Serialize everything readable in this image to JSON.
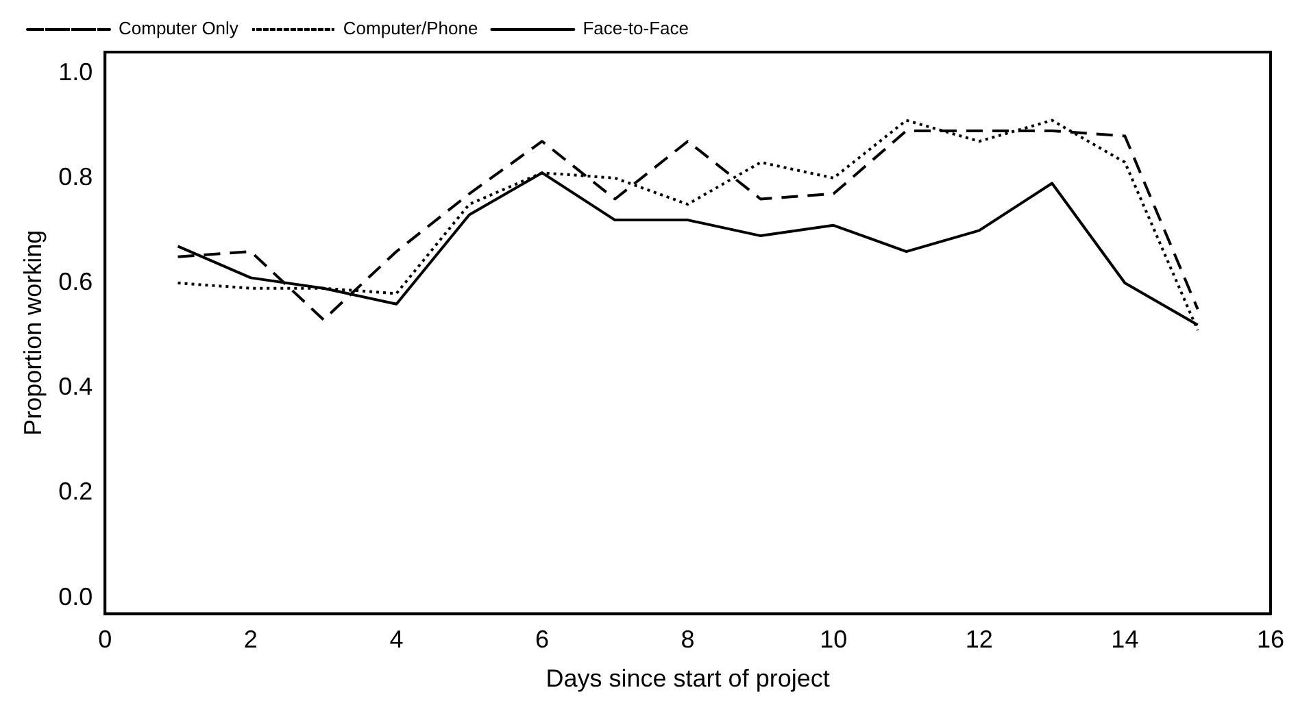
{
  "chart_data": {
    "type": "line",
    "xlabel": "Days since start of project",
    "ylabel": "Proportion working",
    "x": [
      1,
      2,
      3,
      4,
      5,
      6,
      7,
      8,
      9,
      10,
      11,
      12,
      13,
      14,
      15
    ],
    "series": [
      {
        "name": "Computer Only",
        "color": "#000000",
        "line_style": "dashed",
        "values": [
          0.65,
          0.66,
          0.53,
          0.66,
          0.77,
          0.87,
          0.76,
          0.87,
          0.76,
          0.77,
          0.89,
          0.89,
          0.89,
          0.88,
          0.55
        ]
      },
      {
        "name": "Computer/Phone",
        "color": "#000000",
        "line_style": "dotted",
        "values": [
          0.6,
          0.59,
          0.59,
          0.58,
          0.75,
          0.81,
          0.8,
          0.75,
          0.83,
          0.8,
          0.91,
          0.87,
          0.91,
          0.83,
          0.51
        ]
      },
      {
        "name": "Face-to-Face",
        "color": "#000000",
        "line_style": "solid",
        "values": [
          0.67,
          0.61,
          0.59,
          0.56,
          0.73,
          0.81,
          0.72,
          0.72,
          0.69,
          0.71,
          0.66,
          0.7,
          0.79,
          0.6,
          0.52
        ]
      }
    ],
    "xlim": [
      0,
      16
    ],
    "xticks": [
      0,
      2,
      4,
      6,
      8,
      10,
      12,
      14,
      16
    ],
    "ylim": [
      -0.03,
      1.04
    ],
    "yticks": [
      {
        "value": 0,
        "label": "0.0"
      },
      {
        "value": 0.2,
        "label": "0.2"
      },
      {
        "value": 0.4,
        "label": "0.4"
      },
      {
        "value": 0.6,
        "label": "0.6"
      },
      {
        "value": 0.8,
        "label": "0.8"
      },
      {
        "value": 1,
        "label": "1.0"
      }
    ],
    "grid": false,
    "legend": "top left",
    "marker": "none"
  }
}
